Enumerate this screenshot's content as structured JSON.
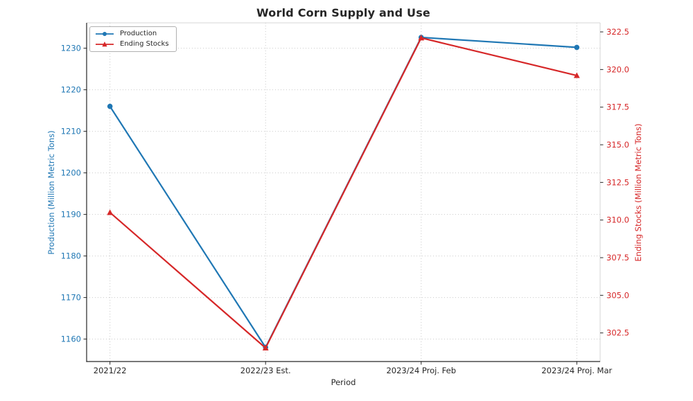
{
  "title": "World Corn Supply and Use",
  "legend": {
    "items": [
      {
        "label": "Production",
        "color": "#1f77b4",
        "marker": "circle"
      },
      {
        "label": "Ending Stocks",
        "color": "#d62728",
        "marker": "triangle-up"
      }
    ]
  },
  "left_axis": {
    "label": "Production (Million Metric Tons)",
    "color": "#1f77b4",
    "tick_labels": [
      "1160",
      "1170",
      "1180",
      "1190",
      "1200",
      "1210",
      "1220",
      "1230"
    ]
  },
  "right_axis": {
    "label": "Ending Stocks (Million Metric Tons)",
    "color": "#d62728",
    "tick_labels": [
      "302.5",
      "305.0",
      "307.5",
      "310.0",
      "312.5",
      "315.0",
      "317.5",
      "320.0",
      "322.5"
    ]
  },
  "x_axis": {
    "label": "Period"
  },
  "chart_data": {
    "type": "line",
    "title": "World Corn Supply and Use",
    "xlabel": "Period",
    "ylabel_left": "Production (Million Metric Tons)",
    "ylabel_right": "Ending Stocks (Million Metric Tons)",
    "categories": [
      "2021/22",
      "2022/23 Est.",
      "2023/24 Proj. Feb",
      "2023/24 Proj. Mar"
    ],
    "series": [
      {
        "name": "Production",
        "axis": "left",
        "color": "#1f77b4",
        "marker": "circle",
        "values": [
          1216.0,
          1158.0,
          1232.6,
          1230.2
        ]
      },
      {
        "name": "Ending Stocks",
        "axis": "right",
        "color": "#d62728",
        "marker": "triangle-up",
        "values": [
          310.5,
          301.5,
          322.1,
          319.6
        ]
      }
    ],
    "left_ticks": [
      1160,
      1170,
      1180,
      1190,
      1200,
      1210,
      1220,
      1230
    ],
    "right_ticks": [
      302.5,
      305.0,
      307.5,
      310.0,
      312.5,
      315.0,
      317.5,
      320.0,
      322.5
    ],
    "left_ylim": [
      1154.6,
      1236.1
    ],
    "right_ylim": [
      300.6,
      323.1
    ],
    "grid": true,
    "grid_style": "dotted",
    "legend_position": "upper left"
  }
}
